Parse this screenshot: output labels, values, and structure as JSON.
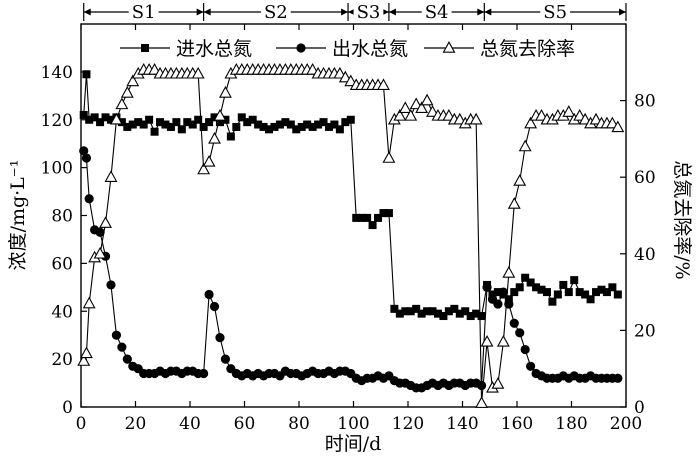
{
  "chart_data": {
    "type": "line",
    "xlabel": "时间/d",
    "ylabel": "浓度/mg·L⁻¹",
    "y2label": "总氮去除率/%",
    "xlim": [
      0,
      200
    ],
    "ylim": [
      0,
      160
    ],
    "y2lim": [
      0,
      100
    ],
    "xticks": [
      0,
      20,
      40,
      60,
      80,
      100,
      120,
      140,
      160,
      180,
      200
    ],
    "yticks": [
      0,
      20,
      40,
      60,
      80,
      100,
      120,
      140
    ],
    "y2ticks": [
      0,
      20,
      40,
      60,
      80
    ],
    "grid": false,
    "legend_position": "top-center",
    "stages": [
      {
        "label": "S1",
        "start": 1,
        "end": 45
      },
      {
        "label": "S2",
        "start": 45,
        "end": 98
      },
      {
        "label": "S3",
        "start": 98,
        "end": 113
      },
      {
        "label": "S4",
        "start": 113,
        "end": 148
      },
      {
        "label": "S5",
        "start": 148,
        "end": 200
      }
    ],
    "series": [
      {
        "name": "进水总氮",
        "axis": "left",
        "marker": "filled-square",
        "x": [
          1,
          2,
          3,
          5,
          7,
          9,
          11,
          13,
          15,
          17,
          19,
          21,
          23,
          25,
          27,
          29,
          31,
          33,
          35,
          37,
          39,
          41,
          43,
          45,
          47,
          49,
          51,
          53,
          55,
          57,
          59,
          61,
          63,
          65,
          67,
          69,
          71,
          73,
          75,
          77,
          79,
          81,
          83,
          85,
          87,
          89,
          91,
          93,
          95,
          97,
          99,
          101,
          103,
          105,
          107,
          109,
          111,
          113,
          115,
          117,
          119,
          121,
          123,
          125,
          127,
          129,
          131,
          133,
          135,
          137,
          139,
          141,
          143,
          145,
          147,
          149,
          151,
          153,
          155,
          157,
          159,
          161,
          163,
          165,
          167,
          169,
          171,
          173,
          175,
          177,
          179,
          181,
          183,
          185,
          187,
          189,
          191,
          193,
          195,
          197
        ],
        "values": [
          122,
          139,
          120,
          121,
          119,
          121,
          120,
          121,
          119,
          117,
          118,
          119,
          118,
          120,
          115,
          119,
          118,
          117,
          119,
          116,
          119,
          118,
          120,
          117,
          119,
          121,
          119,
          120,
          113,
          117,
          121,
          119,
          120,
          118,
          117,
          116,
          117,
          118,
          119,
          118,
          116,
          117,
          118,
          117,
          118,
          119,
          117,
          118,
          116,
          119,
          120,
          79,
          79,
          79,
          76,
          79,
          81,
          81,
          41,
          39,
          40,
          40,
          41,
          39,
          40,
          40,
          39,
          38,
          40,
          41,
          39,
          40,
          38,
          39,
          38,
          51,
          47,
          48,
          47,
          45,
          48,
          50,
          54,
          52,
          50,
          49,
          48,
          44,
          47,
          51,
          48,
          53,
          48,
          47,
          45,
          48,
          49,
          48,
          50,
          47
        ]
      },
      {
        "name": "出水总氮",
        "axis": "left",
        "marker": "filled-circle",
        "x": [
          1,
          2,
          3,
          5,
          7,
          9,
          11,
          13,
          15,
          17,
          19,
          21,
          23,
          25,
          27,
          29,
          31,
          33,
          35,
          37,
          39,
          41,
          43,
          45,
          47,
          49,
          51,
          53,
          55,
          57,
          59,
          61,
          63,
          65,
          67,
          69,
          71,
          73,
          75,
          77,
          79,
          81,
          83,
          85,
          87,
          89,
          91,
          93,
          95,
          97,
          99,
          101,
          103,
          105,
          107,
          109,
          111,
          113,
          115,
          117,
          119,
          121,
          123,
          125,
          127,
          129,
          131,
          133,
          135,
          137,
          139,
          141,
          143,
          145,
          147,
          149,
          151,
          153,
          155,
          157,
          159,
          161,
          163,
          165,
          167,
          169,
          171,
          173,
          175,
          177,
          179,
          181,
          183,
          185,
          187,
          189,
          191,
          193,
          195,
          197
        ],
        "values": [
          107,
          104,
          87,
          74,
          73,
          63,
          51,
          30,
          25,
          20,
          17,
          16,
          14,
          14,
          14,
          15,
          14,
          15,
          15,
          14,
          15,
          15,
          14,
          14,
          47,
          42,
          29,
          20,
          16,
          14,
          13,
          14,
          13,
          14,
          13,
          14,
          14,
          13,
          15,
          14,
          14,
          13,
          14,
          15,
          14,
          14,
          15,
          14,
          15,
          15,
          14,
          12,
          11,
          12,
          12,
          13,
          12,
          13,
          11,
          10,
          10,
          9,
          8,
          8,
          9,
          10,
          9,
          10,
          9,
          10,
          10,
          9,
          10,
          10,
          9,
          50,
          45,
          43,
          48,
          43,
          35,
          31,
          24,
          17,
          14,
          13,
          12,
          12,
          12,
          13,
          12,
          13,
          12,
          12,
          13,
          12,
          12,
          12,
          12,
          12
        ]
      },
      {
        "name": "总氮去除率",
        "axis": "right",
        "marker": "open-triangle",
        "x": [
          1,
          2,
          3,
          5,
          7,
          9,
          11,
          13,
          15,
          17,
          19,
          21,
          23,
          25,
          27,
          29,
          31,
          33,
          35,
          37,
          39,
          41,
          43,
          45,
          47,
          49,
          51,
          53,
          55,
          57,
          59,
          61,
          63,
          65,
          67,
          69,
          71,
          73,
          75,
          77,
          79,
          81,
          83,
          85,
          87,
          89,
          91,
          93,
          95,
          97,
          99,
          101,
          103,
          105,
          107,
          109,
          111,
          113,
          115,
          117,
          119,
          121,
          123,
          125,
          127,
          129,
          131,
          133,
          135,
          137,
          139,
          141,
          143,
          145,
          147,
          149,
          151,
          153,
          155,
          157,
          159,
          161,
          163,
          165,
          167,
          169,
          171,
          173,
          175,
          177,
          179,
          181,
          183,
          185,
          187,
          189,
          191,
          193,
          195,
          197
        ],
        "values": [
          12,
          14,
          27,
          39,
          40,
          48,
          60,
          75,
          79,
          82,
          85,
          87,
          88,
          88,
          88,
          87,
          87,
          87,
          87,
          87,
          87,
          87,
          87,
          62,
          64,
          70,
          76,
          82,
          87,
          88,
          88,
          88,
          88,
          88,
          88,
          88,
          88,
          88,
          88,
          88,
          88,
          88,
          88,
          88,
          87,
          87,
          87,
          87,
          87,
          86,
          85,
          84,
          84,
          84,
          84,
          84,
          84,
          65,
          75,
          76,
          78,
          76,
          79,
          78,
          80,
          77,
          76,
          76,
          76,
          75,
          75,
          74,
          75,
          75,
          1,
          17,
          5,
          6,
          17,
          35,
          53,
          59,
          68,
          74,
          76,
          76,
          75,
          75,
          76,
          76,
          77,
          75,
          76,
          75,
          74,
          75,
          74,
          74,
          74,
          73
        ]
      }
    ]
  }
}
